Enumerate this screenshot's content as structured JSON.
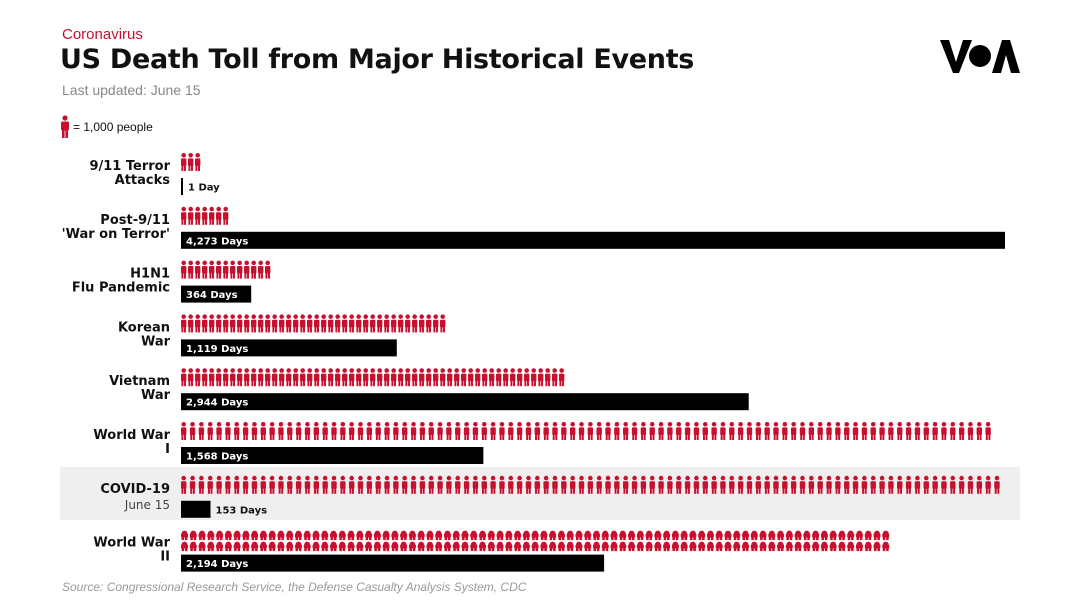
{
  "header": {
    "kicker": "Coronavirus",
    "title": "US Death Toll from Major Historical Events",
    "updated": "Last updated: June 15"
  },
  "logo": {
    "icon": "voa-logo",
    "text": "VOA"
  },
  "legend": {
    "icon": "person-icon",
    "label": "= 1,000 people"
  },
  "source": "Source: Congressional Research Service, the Defense Casualty Analysis System, CDC",
  "colors": {
    "accent": "#c8102e",
    "bar": "#000000",
    "highlight": "#efefef"
  },
  "chart_data": {
    "type": "bar",
    "unit_people_per_icon": 1000,
    "highlighted_category": "COVID-19",
    "categories": [
      {
        "label": [
          "9/11 Terror",
          "Attacks"
        ],
        "sublabel": "",
        "deaths_thousands": 3,
        "days": 1,
        "days_label": "1 Day"
      },
      {
        "label": [
          "Post-9/11",
          "'War on Terror'"
        ],
        "sublabel": "",
        "deaths_thousands": 7,
        "days": 4273,
        "days_label": "4,273 Days"
      },
      {
        "label": [
          "H1N1",
          "Flu Pandemic"
        ],
        "sublabel": "",
        "deaths_thousands": 13,
        "days": 364,
        "days_label": "364 Days"
      },
      {
        "label": [
          "Korean",
          "War"
        ],
        "sublabel": "",
        "deaths_thousands": 38,
        "days": 1119,
        "days_label": "1,119 Days"
      },
      {
        "label": [
          "Vietnam",
          "War"
        ],
        "sublabel": "",
        "deaths_thousands": 55,
        "days": 2944,
        "days_label": "2,944 Days"
      },
      {
        "label": [
          "World War",
          "I"
        ],
        "sublabel": "",
        "deaths_thousands": 92,
        "days": 1568,
        "days_label": "1,568 Days"
      },
      {
        "label": [
          "COVID-19"
        ],
        "sublabel": "June 15",
        "deaths_thousands": 93,
        "days": 153,
        "days_label": "153 Days"
      },
      {
        "label": [
          "World War",
          "II"
        ],
        "sublabel": "",
        "deaths_thousands": 162,
        "days": 2194,
        "days_label": "2,194 Days"
      }
    ]
  }
}
